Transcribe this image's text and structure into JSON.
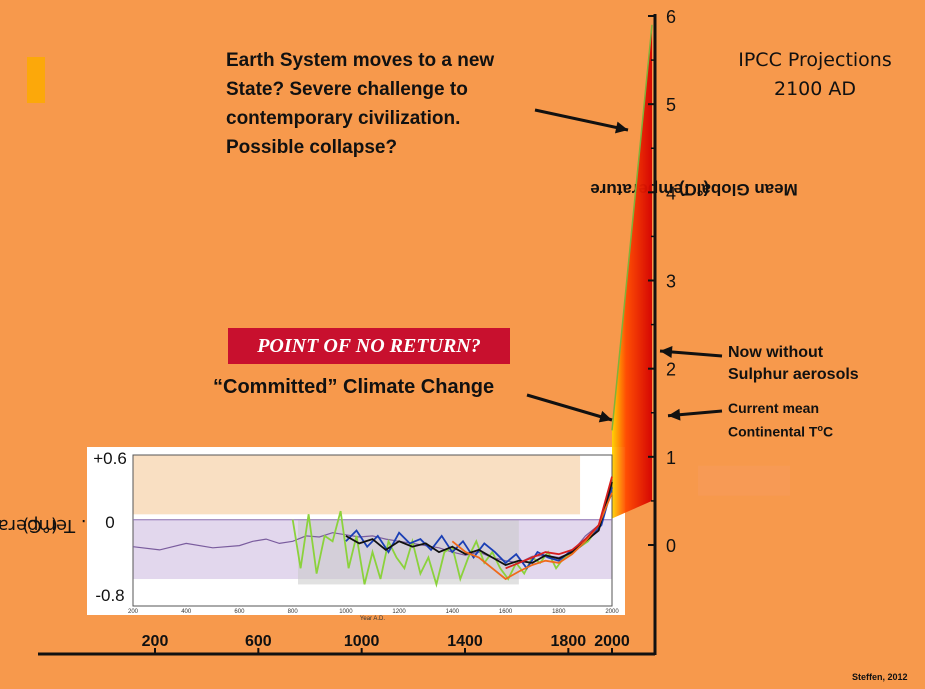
{
  "slide": {
    "main_text": "Earth System moves to a new\nState? Severe challenge to\ncontemporary civilization.\nPossible collapse?",
    "ipcc_label": "IPCC Projections\n2100 AD",
    "point_of_no_return": "POINT OF NO RETURN?",
    "committed_label": "“Committed” Climate Change",
    "now_label": "Now without\nSulphur aerosols",
    "current_label_prefix": "Current mean\nContinental T",
    "current_label_sup": "o",
    "current_label_suffix": "C",
    "credit": "Steffen, 2012",
    "right_ylabel_line1": "Mean Global Temperature",
    "right_ylabel_line2": "(°C)",
    "left_ylabel_line1": "N.H. Temperature",
    "left_ylabel_line2": "(°C)",
    "accent_color": "#fca80a",
    "background_color": "#f7994c",
    "banner_color": "#c8102e"
  },
  "chart_data": [
    {
      "type": "area",
      "description_source": "IPCC projection wedge",
      "ylabel": "Mean Global Temperature (°C)",
      "y_ticks": [
        "6",
        "5",
        "4",
        "3",
        "2",
        "1",
        "0"
      ],
      "ylim": [
        0,
        6
      ],
      "wedge_2100": {
        "low": 0.5,
        "high": 5.9
      },
      "markers": {
        "committed": 1.4,
        "current_continental": 1.5,
        "now_without_aerosols": 2.2
      },
      "colors": [
        "#ffd500",
        "#ff2a00",
        "#d40000"
      ]
    },
    {
      "type": "line",
      "ylabel": "N.H. Temperature (°C)",
      "y_ticks": [
        "+0.6",
        "0",
        "-0.8"
      ],
      "ylim": [
        -0.8,
        0.6
      ],
      "x_ticks_main": [
        "200",
        "600",
        "1000",
        "1400",
        "1800",
        "2000"
      ],
      "x_ticks_inset": [
        "200",
        "400",
        "600",
        "800",
        "1000",
        "1200",
        "1400",
        "1600",
        "1800",
        "2000"
      ],
      "xlabel_inset": "Year A.D.",
      "xlim": [
        200,
        2000
      ],
      "series": [
        {
          "color": "#7a5c9e",
          "x": [
            200,
            300,
            400,
            500,
            600,
            650,
            700,
            750,
            800,
            850,
            900,
            950,
            1000,
            1050,
            1100,
            1150,
            1200,
            1250,
            1300,
            1350,
            1400,
            1450,
            1500,
            1550,
            1600,
            1650,
            1700,
            1750,
            1800,
            1850,
            1900,
            1950,
            2000
          ],
          "values": [
            -0.25,
            -0.28,
            -0.22,
            -0.26,
            -0.24,
            -0.2,
            -0.18,
            -0.22,
            -0.2,
            -0.15,
            -0.16,
            -0.12,
            -0.14,
            -0.16,
            -0.15,
            -0.18,
            -0.2,
            -0.22,
            -0.24,
            -0.26,
            -0.3,
            -0.33,
            -0.3,
            -0.35,
            -0.38,
            -0.4,
            -0.34,
            -0.33,
            -0.35,
            -0.3,
            -0.15,
            -0.05,
            0.25
          ]
        },
        {
          "color": "#8bd23c",
          "x": [
            800,
            830,
            860,
            890,
            920,
            950,
            980,
            1010,
            1040,
            1070,
            1100,
            1130,
            1160,
            1190,
            1220,
            1250,
            1280,
            1310,
            1340,
            1370,
            1400,
            1430,
            1460,
            1490,
            1520,
            1550,
            1580,
            1610,
            1640,
            1670,
            1700,
            1730,
            1760,
            1790,
            1820,
            1850,
            1880,
            1910,
            1940,
            1970,
            2000
          ],
          "values": [
            0.0,
            -0.45,
            0.05,
            -0.5,
            -0.15,
            -0.2,
            0.08,
            -0.45,
            -0.15,
            -0.6,
            -0.3,
            -0.55,
            -0.2,
            -0.35,
            -0.45,
            -0.2,
            -0.5,
            -0.35,
            -0.6,
            -0.3,
            -0.25,
            -0.55,
            -0.35,
            -0.2,
            -0.4,
            -0.3,
            -0.45,
            -0.55,
            -0.4,
            -0.5,
            -0.35,
            -0.4,
            -0.3,
            -0.45,
            -0.35,
            -0.3,
            -0.25,
            -0.2,
            -0.1,
            0.05,
            0.3
          ]
        },
        {
          "color": "#1a3fb5",
          "x": [
            1000,
            1040,
            1080,
            1120,
            1160,
            1200,
            1240,
            1280,
            1320,
            1360,
            1400,
            1440,
            1480,
            1520,
            1560,
            1600,
            1640,
            1680,
            1720,
            1760,
            1800,
            1840,
            1880,
            1920,
            1960,
            2000
          ],
          "values": [
            -0.2,
            -0.1,
            -0.25,
            -0.15,
            -0.3,
            -0.12,
            -0.22,
            -0.18,
            -0.28,
            -0.15,
            -0.3,
            -0.2,
            -0.35,
            -0.22,
            -0.3,
            -0.4,
            -0.32,
            -0.45,
            -0.3,
            -0.35,
            -0.38,
            -0.3,
            -0.25,
            -0.15,
            -0.05,
            0.3
          ]
        },
        {
          "color": "#111111",
          "x": [
            1000,
            1050,
            1100,
            1150,
            1200,
            1250,
            1300,
            1350,
            1400,
            1450,
            1500,
            1550,
            1600,
            1650,
            1700,
            1750,
            1800,
            1850,
            1900,
            1950,
            2000
          ],
          "values": [
            -0.15,
            -0.22,
            -0.18,
            -0.28,
            -0.2,
            -0.25,
            -0.22,
            -0.3,
            -0.25,
            -0.32,
            -0.28,
            -0.35,
            -0.42,
            -0.38,
            -0.4,
            -0.33,
            -0.36,
            -0.3,
            -0.2,
            -0.1,
            0.35
          ]
        },
        {
          "color": "#ef6a1a",
          "x": [
            1400,
            1450,
            1500,
            1550,
            1600,
            1650,
            1700,
            1750,
            1800,
            1850,
            1900,
            1950,
            2000
          ],
          "values": [
            -0.2,
            -0.3,
            -0.35,
            -0.45,
            -0.55,
            -0.48,
            -0.42,
            -0.38,
            -0.4,
            -0.32,
            -0.2,
            -0.05,
            0.25
          ]
        },
        {
          "color": "#d82020",
          "x": [
            1600,
            1650,
            1700,
            1750,
            1800,
            1850,
            1900,
            1950,
            2000
          ],
          "values": [
            -0.45,
            -0.4,
            -0.35,
            -0.3,
            -0.32,
            -0.28,
            -0.18,
            -0.05,
            0.4
          ]
        }
      ]
    }
  ]
}
